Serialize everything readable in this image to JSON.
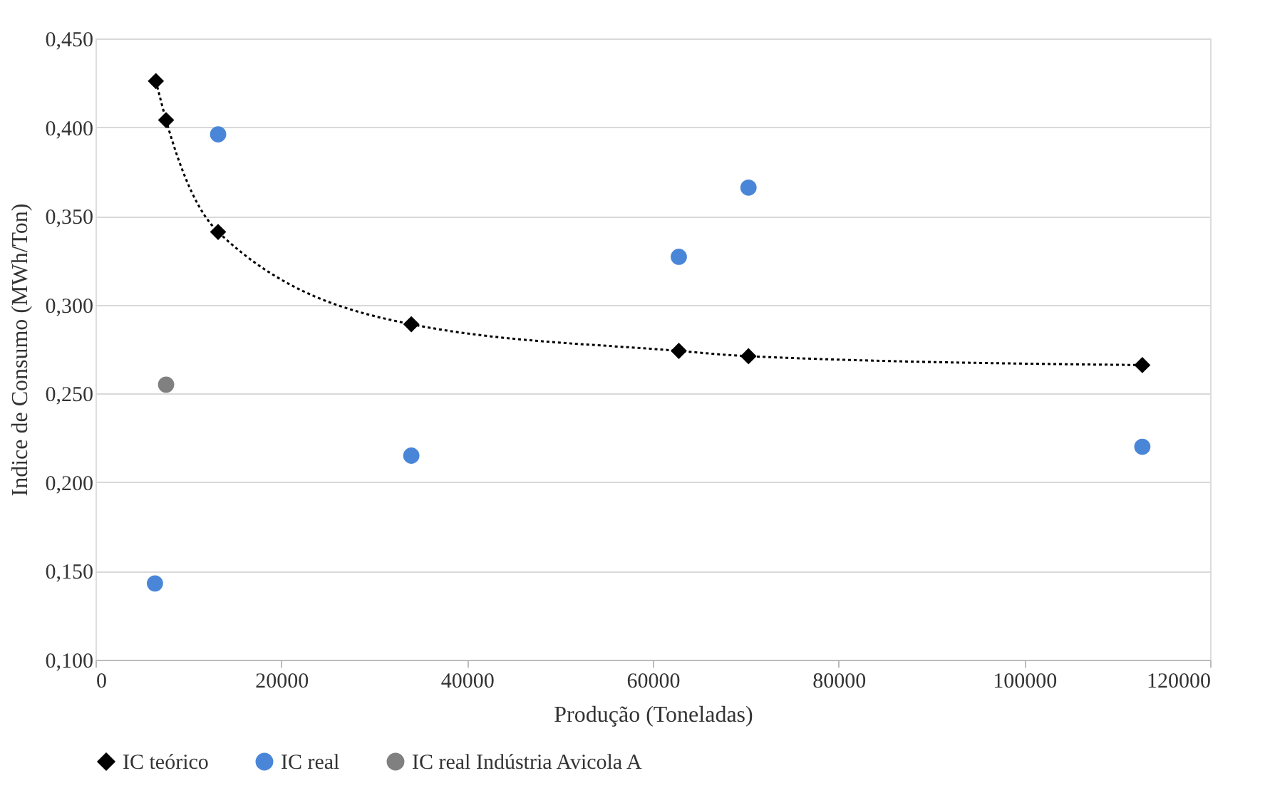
{
  "chart_data": {
    "type": "scatter",
    "xlabel": "Produção (Toneladas)",
    "ylabel": "Indice de Consumo (MWh/Ton)",
    "xlim": [
      0,
      120000
    ],
    "xticks": [
      0,
      20000,
      40000,
      60000,
      80000,
      100000,
      120000
    ],
    "ylim": [
      0.1,
      0.45
    ],
    "yticks": [
      {
        "value": 0.1,
        "label": "0,100"
      },
      {
        "value": 0.15,
        "label": "0,150"
      },
      {
        "value": 0.2,
        "label": "0,200"
      },
      {
        "value": 0.25,
        "label": "0,250"
      },
      {
        "value": 0.3,
        "label": "0,300"
      },
      {
        "value": 0.35,
        "label": "0,350"
      },
      {
        "value": 0.4,
        "label": "0,400"
      },
      {
        "value": 0.45,
        "label": "0,450"
      }
    ],
    "grid": "y",
    "legend": "bottom",
    "series": [
      {
        "name": "IC teórico",
        "type": "line",
        "color": "#000000",
        "marker": "diamond",
        "line_style": "dotted",
        "x": [
          6500,
          7600,
          13200,
          34000,
          62800,
          70300,
          112700
        ],
        "values": [
          0.426,
          0.404,
          0.341,
          0.289,
          0.274,
          0.271,
          0.266
        ]
      },
      {
        "name": "IC real",
        "color": "#4a86d8",
        "marker": "circle",
        "x": [
          6400,
          13200,
          34000,
          62800,
          70300,
          112700
        ],
        "values": [
          0.143,
          0.396,
          0.215,
          0.327,
          0.366,
          0.22
        ]
      },
      {
        "name": "IC real Indústria Avicola A",
        "color": "#808080",
        "marker": "circle",
        "x": [
          7600
        ],
        "values": [
          0.255
        ]
      }
    ]
  }
}
